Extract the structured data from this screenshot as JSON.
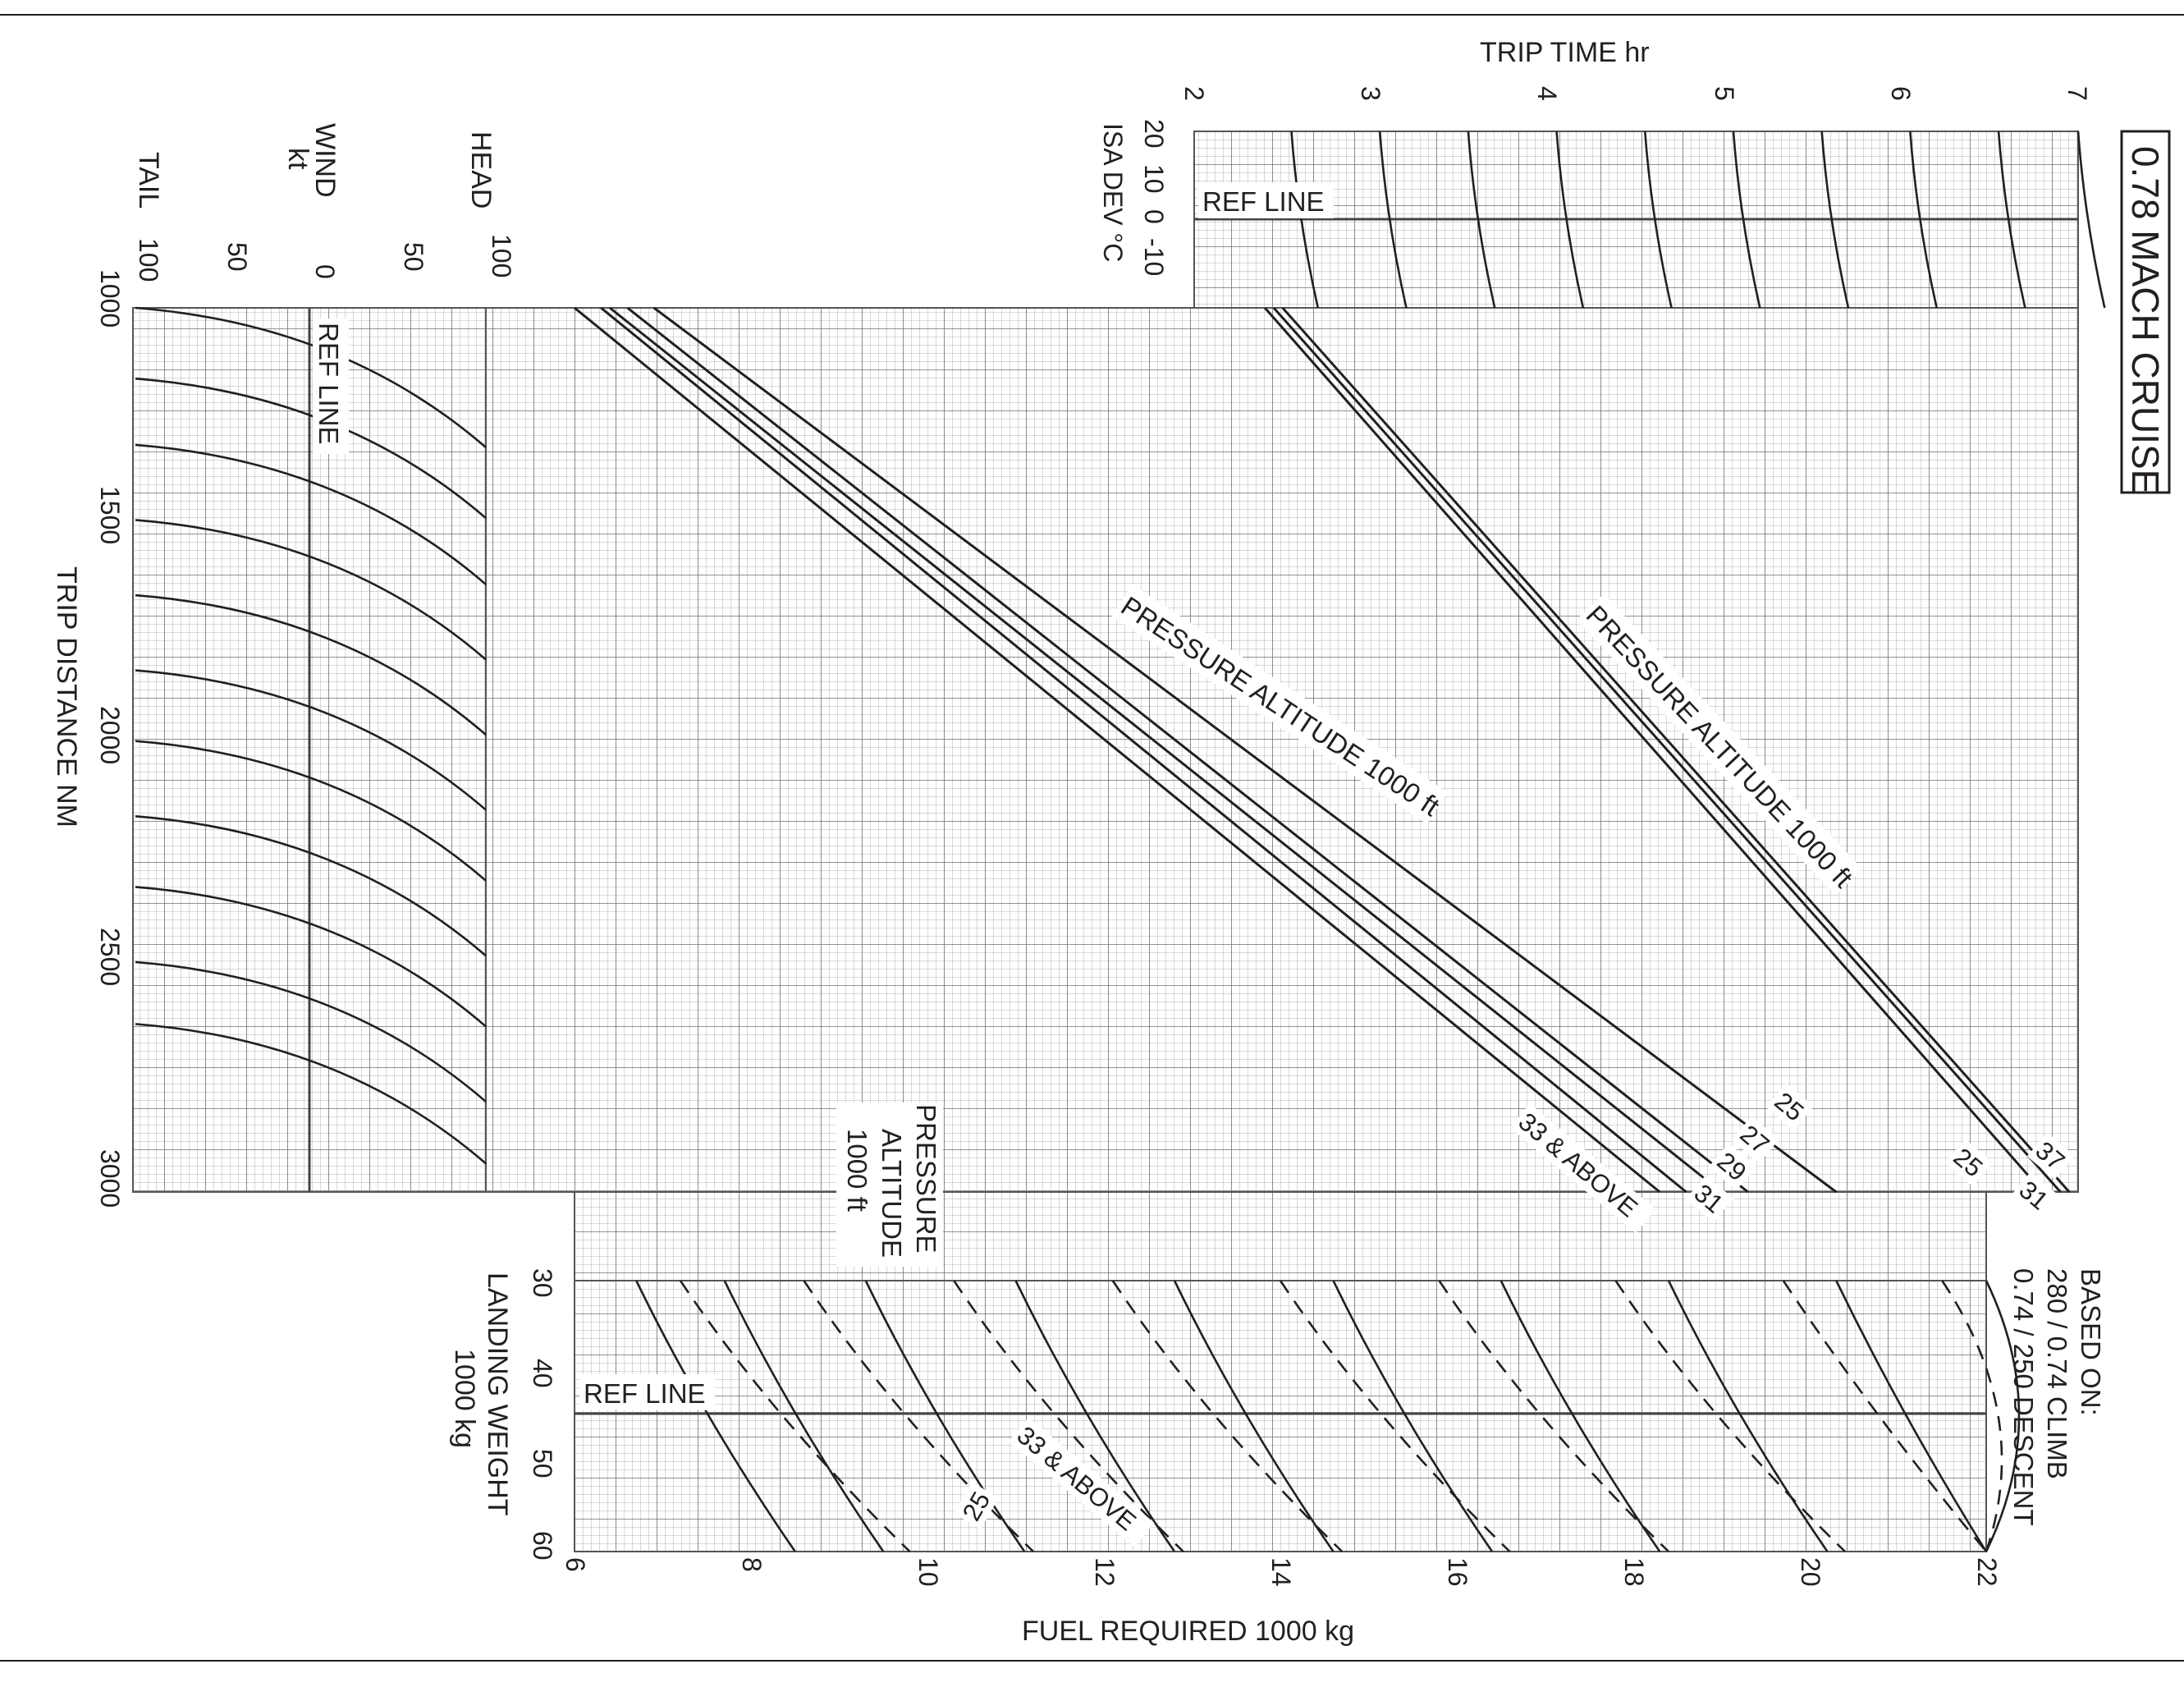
{
  "chart_data": {
    "type": "line",
    "title": "0.78 MACH CRUISE",
    "note": [
      "BASED ON:",
      "280 / 0.74 CLIMB",
      "0.74 / 250 DESCENT"
    ],
    "axes": {
      "trip_distance": {
        "label": "TRIP DISTANCE  NM",
        "ticks": [
          "1000",
          "1500",
          "2000",
          "2500",
          "3000"
        ],
        "range": [
          1000,
          3000
        ]
      },
      "wind": {
        "label_head": "HEAD",
        "label_wind": "WIND",
        "label_unit": "kt",
        "label_tail": "TAIL",
        "ticks": [
          "100",
          "50",
          "0",
          "50",
          "100"
        ],
        "range": [
          -100,
          100
        ]
      },
      "trip_time": {
        "label": "TRIP TIME  hr",
        "ticks": [
          "2",
          "3",
          "4",
          "5",
          "6",
          "7"
        ],
        "range": [
          2,
          7
        ]
      },
      "isa_dev": {
        "label": "ISA DEV °C",
        "ticks": [
          "20",
          "10",
          "0",
          "-10"
        ],
        "range": [
          -10,
          20
        ]
      },
      "fuel_required": {
        "label": "FUEL REQUIRED  1000 kg",
        "ticks": [
          "6",
          "8",
          "10",
          "12",
          "14",
          "16",
          "18",
          "20",
          "22"
        ],
        "range": [
          6,
          22
        ]
      },
      "landing_weight": {
        "label": [
          "LANDING WEIGHT",
          "1000 kg"
        ],
        "ticks": [
          "30",
          "40",
          "50",
          "60"
        ],
        "range": [
          30,
          60
        ]
      }
    },
    "labels": {
      "ref_line": "REF LINE",
      "pressure_altitude_diag": "PRESSURE ALTITUDE  1000 ft",
      "pressure_altitude_block": [
        "PRESSURE",
        "ALTITUDE",
        "1000 ft"
      ],
      "fuel_alt_labels": [
        "25",
        "27",
        "29",
        "31",
        "33 & ABOVE"
      ],
      "time_alt_labels": [
        "25",
        "31",
        "37"
      ],
      "weight_alt_labels": [
        "25",
        "33 & ABOVE"
      ]
    },
    "series": [
      {
        "name": "33 & ABOVE",
        "points": [
          {
            "distance": 1000,
            "fuel": 6.0
          },
          {
            "distance": 3000,
            "fuel": 18.3
          }
        ]
      },
      {
        "name": "31",
        "points": [
          {
            "distance": 1000,
            "fuel": 6.3
          },
          {
            "distance": 3000,
            "fuel": 18.6
          }
        ]
      },
      {
        "name": "29",
        "points": [
          {
            "distance": 1000,
            "fuel": 6.4
          },
          {
            "distance": 3000,
            "fuel": 19.0
          }
        ]
      },
      {
        "name": "27",
        "points": [
          {
            "distance": 1000,
            "fuel": 6.6
          },
          {
            "distance": 3000,
            "fuel": 19.3
          }
        ]
      },
      {
        "name": "25",
        "points": [
          {
            "distance": 1000,
            "fuel": 6.9
          },
          {
            "distance": 3000,
            "fuel": 20.3
          }
        ]
      }
    ],
    "time_series": [
      {
        "name": "25",
        "points": [
          {
            "distance": 1000,
            "time": 2.4
          },
          {
            "distance": 3000,
            "time": 6.8
          }
        ]
      },
      {
        "name": "31",
        "points": [
          {
            "distance": 1000,
            "time": 2.45
          },
          {
            "distance": 3000,
            "time": 6.9
          }
        ]
      },
      {
        "name": "37",
        "points": [
          {
            "distance": 1000,
            "time": 2.5
          },
          {
            "distance": 3000,
            "time": 6.95
          }
        ]
      }
    ],
    "wind_guides": [
      1000,
      1160,
      1310,
      1480,
      1650,
      1820,
      1980,
      2150,
      2310,
      2480,
      2620
    ],
    "isa_guides": [
      2.55,
      3.05,
      3.55,
      4.05,
      4.55,
      5.05,
      5.55,
      6.05,
      6.55,
      7.0
    ],
    "weight_guides_solid": [
      6.7,
      7.7,
      9.3,
      11.0,
      12.8,
      14.6,
      16.5,
      18.4,
      20.3,
      22.0
    ],
    "weight_guides_dashed": [
      7.2,
      8.6,
      10.3,
      12.1,
      14.0,
      15.8,
      17.8,
      19.7,
      21.5
    ]
  }
}
